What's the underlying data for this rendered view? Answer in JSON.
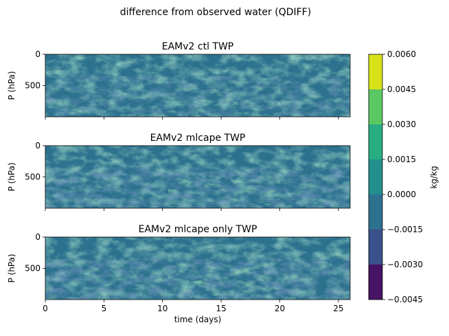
{
  "figure": {
    "suptitle": "difference from observed water (QDIFF)"
  },
  "chart_data": [
    {
      "type": "heatmap",
      "title": "EAMv2 ctl TWP",
      "xlabel": "",
      "ylabel": "P (hPa)",
      "xlim": [
        0,
        26
      ],
      "x_ticks": [
        0,
        5,
        10,
        15,
        20,
        25
      ],
      "y_ticks": [
        0,
        500
      ],
      "y_tick_labels": [
        "0",
        "500"
      ],
      "yrange": [
        0,
        1000
      ],
      "y_inverted": true
    },
    {
      "type": "heatmap",
      "title": "EAMv2 mlcape TWP",
      "xlabel": "",
      "ylabel": "P (hPa)",
      "xlim": [
        0,
        26
      ],
      "x_ticks": [
        0,
        5,
        10,
        15,
        20,
        25
      ],
      "y_ticks": [
        0,
        500
      ],
      "y_tick_labels": [
        "0",
        "500"
      ],
      "yrange": [
        0,
        1000
      ],
      "y_inverted": true
    },
    {
      "type": "heatmap",
      "title": "EAMv2 mlcape only TWP",
      "xlabel": "time (days)",
      "ylabel": "P (hPa)",
      "xlim": [
        0,
        26
      ],
      "x_ticks": [
        0,
        5,
        10,
        15,
        20,
        25
      ],
      "x_tick_labels": [
        "0",
        "5",
        "10",
        "15",
        "20",
        "25"
      ],
      "y_ticks": [
        0,
        500
      ],
      "y_tick_labels": [
        "0",
        "500"
      ],
      "yrange": [
        0,
        1000
      ],
      "y_inverted": true
    }
  ],
  "colorbar": {
    "label": "kg/kg",
    "levels": [
      -0.0045,
      -0.003,
      -0.0015,
      0.0,
      0.0015,
      0.003,
      0.0045,
      0.006
    ],
    "tick_labels": [
      "−0.0045",
      "−0.0030",
      "−0.0015",
      "0.0000",
      "0.0015",
      "0.0030",
      "0.0045",
      "0.0060"
    ],
    "colors": [
      "#471365",
      "#3b518b",
      "#2c718e",
      "#21908d",
      "#27ad81",
      "#5cc863",
      "#d8e219"
    ]
  }
}
